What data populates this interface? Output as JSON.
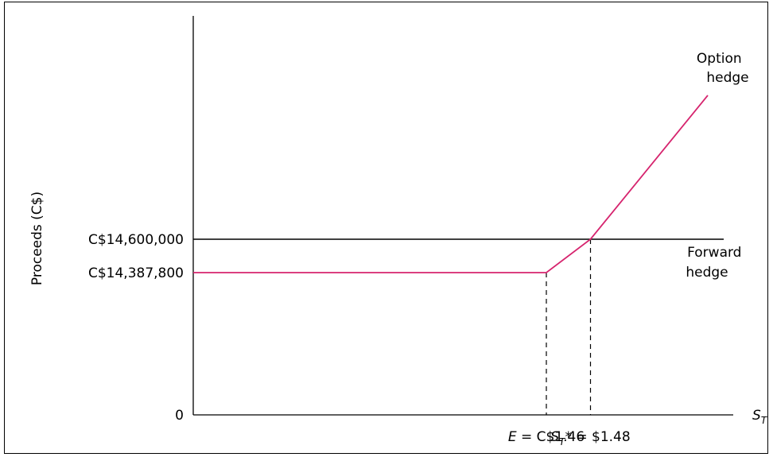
{
  "chart_data": {
    "type": "line",
    "ylabel": "Proceeds (C$)",
    "xlabel": "S",
    "xlabel_sub": "T",
    "yticks": [
      {
        "label": "C$14,600,000",
        "value": 14600000
      },
      {
        "label": "C$14,387,800",
        "value": 14387800
      },
      {
        "label": "0",
        "value": 0
      }
    ],
    "xticks": [
      {
        "var": "E",
        "rest": " = C$1.46",
        "value": 1.46
      },
      {
        "var": "S",
        "sub": "T",
        "rest": "* = $1.48",
        "value": 1.48
      }
    ],
    "series": [
      {
        "name_lines": [
          "Forward",
          "hedge"
        ],
        "color": "#000000",
        "points": [
          [
            1.3,
            14600000
          ],
          [
            1.7,
            14600000
          ]
        ]
      },
      {
        "name_lines": [
          "Option",
          "hedge"
        ],
        "color": "#d6246e",
        "points": [
          [
            1.3,
            14387800
          ],
          [
            1.46,
            14387800
          ],
          [
            1.48,
            14600000
          ],
          [
            1.7,
            16460000
          ]
        ]
      }
    ],
    "grid": false,
    "legend": "inline-right"
  }
}
